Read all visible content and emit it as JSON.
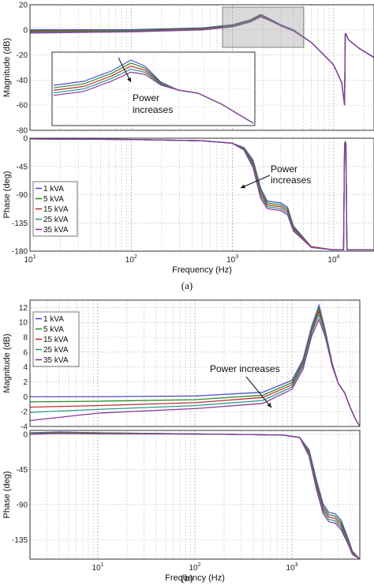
{
  "chart_data": [
    {
      "type": "line",
      "title": "",
      "xlabel": "Frequency (Hz)",
      "ylabel": "Magnitude (dB)",
      "xscale": "log",
      "xlim": [
        10,
        25000
      ],
      "ylim": [
        -80,
        20
      ],
      "yticks": [
        "20",
        "0",
        "-20",
        "-40",
        "-60",
        "-80"
      ],
      "grid": true,
      "series": [
        {
          "name": "1 kVA",
          "color": "#4f4fd0",
          "x": [
            10,
            100,
            500,
            1000,
            1500,
            1900,
            2300,
            3000,
            4000,
            6000,
            8000,
            10000,
            12000,
            12800,
            13000,
            13200,
            14000,
            18000,
            25000
          ],
          "y": [
            0,
            0.2,
            1.5,
            4,
            8,
            12.3,
            9,
            4,
            0,
            -10,
            -20,
            -28,
            -42,
            -60,
            -3,
            -3,
            -8,
            -15,
            -22
          ]
        },
        {
          "name": "5 kVA",
          "color": "#2a8a2a",
          "x": [
            10,
            100,
            500,
            1000,
            1500,
            1900,
            2300,
            3000,
            4000,
            6000,
            8000,
            10000,
            12000,
            12800,
            13000,
            13200,
            14000,
            18000,
            25000
          ],
          "y": [
            -0.6,
            -0.3,
            1.2,
            3.6,
            7.6,
            11.8,
            8.6,
            3.8,
            -0.2,
            -10,
            -20,
            -28,
            -42,
            -60,
            -3,
            -3,
            -8,
            -15,
            -22
          ]
        },
        {
          "name": "15 kVA",
          "color": "#c03030",
          "x": [
            10,
            100,
            500,
            1000,
            1500,
            1900,
            2300,
            3000,
            4000,
            6000,
            8000,
            10000,
            12000,
            12800,
            13000,
            13200,
            14000,
            18000,
            25000
          ],
          "y": [
            -1.2,
            -0.8,
            0.8,
            3.2,
            7.2,
            11.3,
            8.3,
            3.6,
            -0.4,
            -10,
            -20,
            -28,
            -42,
            -60,
            -3,
            -3,
            -8,
            -15,
            -22
          ]
        },
        {
          "name": "25 kVA",
          "color": "#2a9a8a",
          "x": [
            10,
            100,
            500,
            1000,
            1500,
            1900,
            2300,
            3000,
            4000,
            6000,
            8000,
            10000,
            12000,
            12800,
            13000,
            13200,
            14000,
            18000,
            25000
          ],
          "y": [
            -1.8,
            -1.2,
            0.4,
            2.8,
            6.8,
            10.8,
            8,
            3.4,
            -0.6,
            -10,
            -20,
            -28,
            -42,
            -60,
            -3,
            -3,
            -8,
            -15,
            -22
          ]
        },
        {
          "name": "35 kVA",
          "color": "#8a3a9a",
          "x": [
            10,
            100,
            500,
            1000,
            1500,
            1900,
            2300,
            3000,
            4000,
            6000,
            8000,
            10000,
            12000,
            12800,
            13000,
            13200,
            14000,
            18000,
            25000
          ],
          "y": [
            -2.5,
            -1.6,
            0,
            2.4,
            6.3,
            10.3,
            7.7,
            3.2,
            -0.8,
            -10,
            -20,
            -28,
            -42,
            -60,
            -3,
            -3,
            -8,
            -15,
            -22
          ]
        }
      ],
      "annotation": "Power increases"
    },
    {
      "type": "line",
      "title": "",
      "xlabel": "Frequency (Hz)",
      "ylabel": "Phase (deg)",
      "xscale": "log",
      "xlim": [
        10,
        25000
      ],
      "ylim": [
        -180,
        0
      ],
      "yticks": [
        "0",
        "-45",
        "-90",
        "-135",
        "-180"
      ],
      "xticks": [
        "10^1",
        "10^2",
        "10^3",
        "10^4"
      ],
      "grid": true,
      "legend": "left",
      "series": [
        {
          "name": "1 kVA",
          "color": "#4f4fd0",
          "x": [
            10,
            100,
            500,
            1000,
            1300,
            1600,
            1900,
            2200,
            2600,
            3000,
            3500,
            4000,
            6000,
            10000,
            12500,
            12800,
            13000,
            13200,
            13500,
            14000,
            25000
          ],
          "y": [
            -1,
            -2,
            -4,
            -8,
            -15,
            -35,
            -80,
            -100,
            -102,
            -103,
            -110,
            -140,
            -173,
            -178,
            -178,
            -10,
            -5,
            -10,
            -178,
            -178,
            -178
          ]
        },
        {
          "name": "5 kVA",
          "color": "#2a8a2a",
          "x": [
            10,
            100,
            500,
            1000,
            1300,
            1600,
            1900,
            2200,
            2600,
            3000,
            3500,
            4000,
            6000,
            10000,
            12500,
            12800,
            13000,
            13200,
            13500,
            14000,
            25000
          ],
          "y": [
            -1,
            -2,
            -4,
            -8,
            -16,
            -38,
            -84,
            -103,
            -105,
            -106,
            -113,
            -142,
            -173,
            -178,
            -178,
            -10,
            -5,
            -10,
            -178,
            -178,
            -178
          ]
        },
        {
          "name": "15 kVA",
          "color": "#c03030",
          "x": [
            10,
            100,
            500,
            1000,
            1300,
            1600,
            1900,
            2200,
            2600,
            3000,
            3500,
            4000,
            6000,
            10000,
            12500,
            12800,
            13000,
            13200,
            13500,
            14000,
            25000
          ],
          "y": [
            -1,
            -2,
            -4,
            -8,
            -17,
            -41,
            -88,
            -106,
            -108,
            -109,
            -116,
            -144,
            -173,
            -178,
            -178,
            -10,
            -5,
            -10,
            -178,
            -178,
            -178
          ]
        },
        {
          "name": "25 kVA",
          "color": "#2a9a8a",
          "x": [
            10,
            100,
            500,
            1000,
            1300,
            1600,
            1900,
            2200,
            2600,
            3000,
            3500,
            4000,
            6000,
            10000,
            12500,
            12800,
            13000,
            13200,
            13500,
            14000,
            25000
          ],
          "y": [
            -1,
            -2,
            -4,
            -8,
            -18,
            -44,
            -92,
            -109,
            -111,
            -112,
            -119,
            -146,
            -174,
            -178,
            -178,
            -10,
            -5,
            -10,
            -178,
            -178,
            -178
          ]
        },
        {
          "name": "35 kVA",
          "color": "#8a3a9a",
          "x": [
            10,
            100,
            500,
            1000,
            1300,
            1600,
            1900,
            2200,
            2600,
            3000,
            3500,
            4000,
            6000,
            10000,
            12500,
            12800,
            13000,
            13200,
            13500,
            14000,
            25000
          ],
          "y": [
            -1,
            -2,
            -4,
            -8,
            -19,
            -47,
            -96,
            -112,
            -114,
            -115,
            -122,
            -148,
            -174,
            -178,
            -178,
            -10,
            -5,
            -10,
            -178,
            -178,
            -178
          ]
        }
      ],
      "annotation": "Power increases",
      "caption": "(a)"
    },
    {
      "type": "line",
      "title": "",
      "xlabel": "Frequency (Hz)",
      "ylabel": "Magnitude (dB)",
      "xscale": "log",
      "xlim": [
        2,
        5000
      ],
      "ylim": [
        -4,
        13
      ],
      "yticks": [
        "12",
        "10",
        "8",
        "6",
        "4",
        "2",
        "0",
        "-2",
        "-4"
      ],
      "grid": true,
      "legend": "top-left",
      "series": [
        {
          "name": "1 kVA",
          "color": "#4f4fd0",
          "x": [
            2,
            10,
            100,
            500,
            1000,
            1300,
            1600,
            1900,
            2200,
            2600,
            3000,
            3500,
            4000,
            4500,
            5000
          ],
          "y": [
            0,
            0,
            0.1,
            0.6,
            2.2,
            5,
            9.5,
            12.3,
            9,
            4.5,
            1.8,
            0.5,
            -1.5,
            -3,
            -4
          ]
        },
        {
          "name": "5 kVA",
          "color": "#2a8a2a",
          "x": [
            2,
            10,
            100,
            500,
            1000,
            1300,
            1600,
            1900,
            2200,
            2600,
            3000,
            3500,
            4000,
            4500,
            5000
          ],
          "y": [
            -0.7,
            -0.6,
            -0.4,
            0.2,
            1.9,
            4.7,
            9.2,
            11.9,
            8.8,
            4.4,
            1.8,
            0.5,
            -1.5,
            -3,
            -4
          ]
        },
        {
          "name": "15 kVA",
          "color": "#c03030",
          "x": [
            2,
            10,
            100,
            500,
            1000,
            1300,
            1600,
            1900,
            2200,
            2600,
            3000,
            3500,
            4000,
            4500,
            5000
          ],
          "y": [
            -1.4,
            -1.2,
            -0.8,
            -0.1,
            1.6,
            4.4,
            8.9,
            11.5,
            8.6,
            4.3,
            1.8,
            0.5,
            -1.5,
            -3,
            -4
          ]
        },
        {
          "name": "25 kVA",
          "color": "#2a9a8a",
          "x": [
            2,
            10,
            100,
            500,
            1000,
            1300,
            1600,
            1900,
            2200,
            2600,
            3000,
            3500,
            4000,
            4500,
            5000
          ],
          "y": [
            -2.1,
            -1.7,
            -1.2,
            -0.5,
            1.3,
            4.1,
            8.6,
            11,
            8.4,
            4.2,
            1.8,
            0.5,
            -1.5,
            -3,
            -4
          ]
        },
        {
          "name": "35 kVA",
          "color": "#8a3a9a",
          "x": [
            2,
            10,
            100,
            500,
            1000,
            1300,
            1600,
            1900,
            2200,
            2600,
            3000,
            3500,
            4000,
            4500,
            5000
          ],
          "y": [
            -3.2,
            -2.2,
            -1.6,
            -0.9,
            1,
            3.7,
            8.2,
            10.4,
            8.1,
            4.1,
            1.8,
            0.5,
            -1.5,
            -3,
            -4
          ]
        }
      ],
      "annotation": "Power increases"
    },
    {
      "type": "line",
      "title": "",
      "xlabel": "Frequency (Hz)",
      "ylabel": "Phase (deg)",
      "xscale": "log",
      "xlim": [
        2,
        5000
      ],
      "ylim": [
        -160,
        5
      ],
      "yticks": [
        "0",
        "-45",
        "-90",
        "-135"
      ],
      "xticks": [
        "10^1",
        "10^2",
        "10^3"
      ],
      "grid": true,
      "series": [
        {
          "name": "1 kVA",
          "color": "#4f4fd0",
          "x": [
            2,
            4,
            10,
            50,
            200,
            800,
            1200,
            1500,
            1800,
            2100,
            2400,
            2800,
            3200,
            3700,
            4200,
            5000
          ],
          "y": [
            2,
            3,
            2,
            1,
            0,
            -1,
            -4,
            -20,
            -60,
            -90,
            -100,
            -102,
            -110,
            -130,
            -150,
            -160
          ]
        },
        {
          "name": "5 kVA",
          "color": "#2a8a2a",
          "x": [
            2,
            4,
            10,
            50,
            200,
            800,
            1200,
            1500,
            1800,
            2100,
            2400,
            2800,
            3200,
            3700,
            4200,
            5000
          ],
          "y": [
            1.5,
            2.5,
            2,
            1,
            0,
            -1,
            -4,
            -22,
            -63,
            -93,
            -103,
            -105,
            -113,
            -132,
            -151,
            -160
          ]
        },
        {
          "name": "15 kVA",
          "color": "#c03030",
          "x": [
            2,
            4,
            10,
            50,
            200,
            800,
            1200,
            1500,
            1800,
            2100,
            2400,
            2800,
            3200,
            3700,
            4200,
            5000
          ],
          "y": [
            1,
            2,
            1.5,
            0.8,
            0,
            -1,
            -4,
            -24,
            -66,
            -96,
            -106,
            -108,
            -116,
            -134,
            -152,
            -160
          ]
        },
        {
          "name": "25 kVA",
          "color": "#2a9a8a",
          "x": [
            2,
            4,
            10,
            50,
            200,
            800,
            1200,
            1500,
            1800,
            2100,
            2400,
            2800,
            3200,
            3700,
            4200,
            5000
          ],
          "y": [
            0.5,
            1.5,
            1,
            0.6,
            0,
            -1,
            -4,
            -26,
            -69,
            -99,
            -109,
            -111,
            -119,
            -136,
            -153,
            -160
          ]
        },
        {
          "name": "35 kVA",
          "color": "#8a3a9a",
          "x": [
            2,
            4,
            10,
            50,
            200,
            800,
            1200,
            1500,
            1800,
            2100,
            2400,
            2800,
            3200,
            3700,
            4200,
            5000
          ],
          "y": [
            0,
            1,
            0.5,
            0.4,
            0,
            -1,
            -4,
            -28,
            -72,
            -102,
            -112,
            -114,
            -122,
            -138,
            -154,
            -160
          ]
        }
      ],
      "caption": "(b)"
    }
  ]
}
